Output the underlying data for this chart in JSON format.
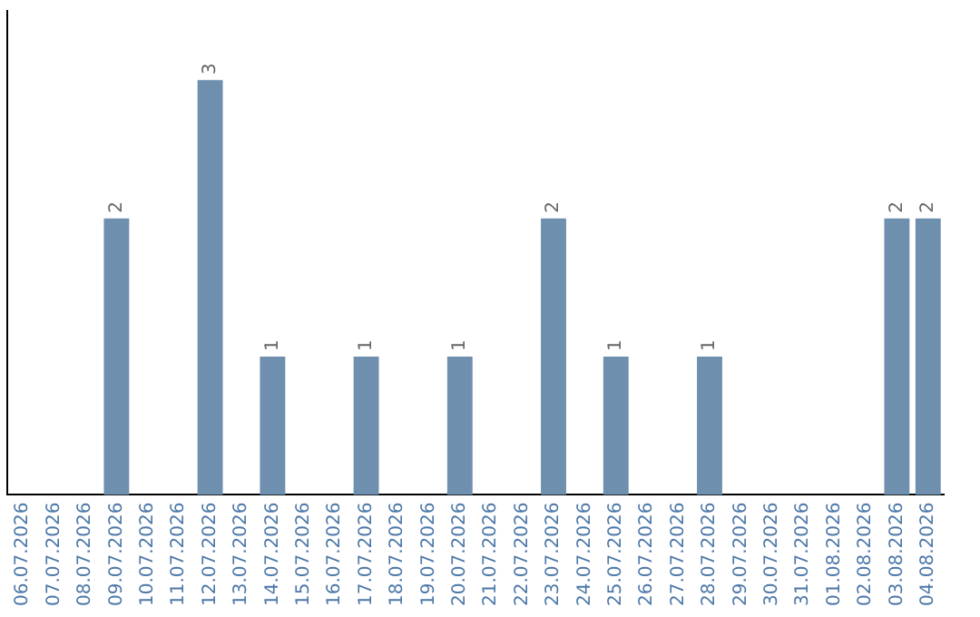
{
  "chart_data": {
    "type": "bar",
    "categories": [
      "06.07.2026",
      "07.07.2026",
      "08.07.2026",
      "09.07.2026",
      "10.07.2026",
      "11.07.2026",
      "12.07.2026",
      "13.07.2026",
      "14.07.2026",
      "15.07.2026",
      "16.07.2026",
      "17.07.2026",
      "18.07.2026",
      "19.07.2026",
      "20.07.2026",
      "21.07.2026",
      "22.07.2026",
      "23.07.2026",
      "24.07.2026",
      "25.07.2026",
      "26.07.2026",
      "27.07.2026",
      "28.07.2026",
      "29.07.2026",
      "30.07.2026",
      "31.07.2026",
      "01.08.2026",
      "02.08.2026",
      "03.08.2026",
      "04.08.2026"
    ],
    "values": [
      0,
      0,
      0,
      2,
      0,
      0,
      3,
      0,
      1,
      0,
      0,
      1,
      0,
      0,
      1,
      0,
      0,
      2,
      0,
      1,
      0,
      0,
      1,
      0,
      0,
      0,
      0,
      0,
      2,
      2
    ],
    "value_labels": [
      null,
      null,
      null,
      "2",
      null,
      null,
      "3",
      null,
      "1",
      null,
      null,
      "1",
      null,
      null,
      "1",
      null,
      null,
      "2",
      null,
      "1",
      null,
      null,
      "1",
      null,
      null,
      null,
      null,
      null,
      "2",
      "2"
    ],
    "color": "#6e8fae",
    "grid": false,
    "legend": false,
    "tick_labels": "x"
  }
}
